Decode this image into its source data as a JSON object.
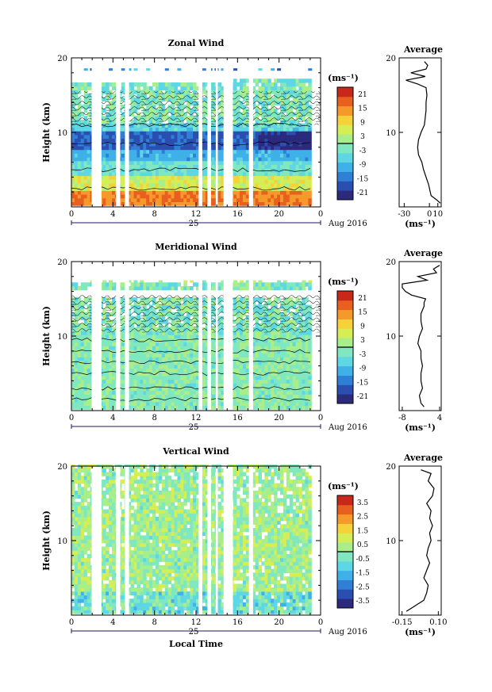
{
  "chart_data": [
    {
      "type": "heatmap",
      "title": "Zonal Wind",
      "ylabel": "Height (km)",
      "xlabel": "",
      "x_ticks": [
        "0",
        "4",
        "8",
        "12",
        "16",
        "20",
        "0"
      ],
      "y_ticks": [
        "10",
        "20"
      ],
      "xlim": [
        0,
        24
      ],
      "ylim": [
        0,
        20
      ],
      "date_day_label": "25",
      "date_label": "Aug 2016",
      "colorbar": {
        "unit_label": "(ms⁻¹)",
        "ticks": [
          "21",
          "15",
          "9",
          "3",
          "-3",
          "-9",
          "-15",
          "-21"
        ],
        "range": [
          -24,
          24
        ],
        "colors": [
          "#2b2a7d",
          "#2a4fb0",
          "#2f7fd6",
          "#3fb0e8",
          "#5ed6e3",
          "#7fe8c0",
          "#a8ee8a",
          "#d6ee55",
          "#f5d23a",
          "#f59a2a",
          "#e8601f",
          "#c8281a"
        ]
      },
      "data_gaps_hours": [
        [
          1.95,
          2.9
        ],
        [
          4.3,
          4.7
        ],
        [
          5.15,
          5.55
        ],
        [
          12.25,
          12.6
        ],
        [
          13.1,
          13.45
        ],
        [
          13.9,
          14.1
        ],
        [
          14.65,
          15.55
        ],
        [
          17.1,
          17.5
        ]
      ],
      "profile": {
        "title": "Average",
        "xlabel": "(ms⁻¹)",
        "x_ticks": [
          "-30",
          "0",
          "10"
        ],
        "xlim": [
          -36,
          14
        ],
        "y_ticks": [
          "10",
          "20"
        ],
        "height_km": [
          0.5,
          1,
          1.5,
          2,
          3,
          4,
          5,
          6,
          7,
          8,
          9,
          10,
          11,
          12,
          13,
          14,
          15,
          16,
          16.5,
          17,
          17.5,
          18,
          18.5,
          19,
          19.5
        ],
        "values": [
          13,
          8,
          2,
          1,
          -1,
          -4,
          -7,
          -9,
          -13,
          -14,
          -13,
          -10,
          -6,
          -5,
          -4,
          -4,
          -3,
          -4,
          -14,
          -28,
          -5,
          -22,
          -4,
          -2,
          -6
        ]
      }
    },
    {
      "type": "heatmap",
      "title": "Meridional Wind",
      "ylabel": "Height (km)",
      "xlabel": "",
      "x_ticks": [
        "0",
        "4",
        "8",
        "12",
        "16",
        "20",
        "0"
      ],
      "y_ticks": [
        "10",
        "20"
      ],
      "xlim": [
        0,
        24
      ],
      "ylim": [
        0,
        20
      ],
      "date_day_label": "25",
      "date_label": "Aug 2016",
      "colorbar": {
        "unit_label": "(ms⁻¹)",
        "ticks": [
          "21",
          "15",
          "9",
          "3",
          "-3",
          "-9",
          "-15",
          "-21"
        ],
        "range": [
          -24,
          24
        ],
        "colors": [
          "#2b2a7d",
          "#2a4fb0",
          "#2f7fd6",
          "#3fb0e8",
          "#5ed6e3",
          "#7fe8c0",
          "#a8ee8a",
          "#d6ee55",
          "#f5d23a",
          "#f59a2a",
          "#e8601f",
          "#c8281a"
        ]
      },
      "data_gaps_hours": [
        [
          1.95,
          2.9
        ],
        [
          4.3,
          4.7
        ],
        [
          5.15,
          5.55
        ],
        [
          12.25,
          12.6
        ],
        [
          13.1,
          13.45
        ],
        [
          13.9,
          14.1
        ],
        [
          14.65,
          15.55
        ],
        [
          17.1,
          17.5
        ]
      ],
      "profile": {
        "title": "Average",
        "xlabel": "(ms⁻¹)",
        "x_ticks": [
          "-8",
          "4"
        ],
        "xlim": [
          -9,
          4.5
        ],
        "y_ticks": [
          "10",
          "20"
        ],
        "height_km": [
          0.5,
          1,
          2,
          3,
          4,
          5,
          6,
          7,
          8,
          9,
          10,
          11,
          12,
          13,
          14,
          14.5,
          15,
          15.5,
          16,
          16.5,
          17,
          17.5,
          18,
          18.5,
          19,
          19.5
        ],
        "values": [
          -1,
          -2,
          -2.5,
          -1.5,
          -2,
          -2,
          -1.5,
          -2,
          -2,
          -3,
          -2.5,
          -1.5,
          -2,
          -2,
          -1,
          -1,
          -0.5,
          -5,
          -7,
          -8,
          -8,
          0,
          -3,
          3,
          2,
          4
        ]
      }
    },
    {
      "type": "heatmap",
      "title": "Vertical Wind",
      "ylabel": "Height (km)",
      "xlabel": "Local Time",
      "x_ticks": [
        "0",
        "4",
        "8",
        "12",
        "16",
        "20",
        "0"
      ],
      "y_ticks": [
        "10",
        "20"
      ],
      "xlim": [
        0,
        24
      ],
      "ylim": [
        0,
        20
      ],
      "date_day_label": "25",
      "date_label": "Aug 2016",
      "colorbar": {
        "unit_label": "(ms⁻¹)",
        "ticks": [
          "3.5",
          "2.5",
          "1.5",
          "0.5",
          "-0.5",
          "-1.5",
          "-2.5",
          "-3.5"
        ],
        "range": [
          -4,
          4
        ],
        "colors": [
          "#2b2a7d",
          "#2a4fb0",
          "#2f7fd6",
          "#3fb0e8",
          "#5ed6e3",
          "#7fe8c0",
          "#a8ee8a",
          "#d6ee55",
          "#f5d23a",
          "#f59a2a",
          "#e8601f",
          "#c8281a"
        ]
      },
      "data_gaps_hours": [
        [
          1.95,
          2.9
        ],
        [
          4.3,
          4.7
        ],
        [
          5.15,
          5.55
        ],
        [
          12.25,
          12.6
        ],
        [
          13.1,
          13.45
        ],
        [
          13.9,
          14.1
        ],
        [
          14.65,
          15.55
        ],
        [
          17.1,
          17.5
        ]
      ],
      "profile": {
        "title": "Average",
        "xlabel": "(ms⁻¹)",
        "x_ticks": [
          "-0.15",
          "0.10"
        ],
        "xlim": [
          -0.17,
          0.12
        ],
        "y_ticks": [
          "10",
          "20"
        ],
        "height_km": [
          0.5,
          1,
          2,
          3,
          4,
          5,
          6,
          7,
          8,
          9,
          10,
          11,
          12,
          13,
          14,
          15,
          16,
          17,
          18,
          19,
          19.5
        ],
        "values": [
          -0.12,
          -0.08,
          0.0,
          0.02,
          0.03,
          0.0,
          0.02,
          0.04,
          0.02,
          0.03,
          0.05,
          0.04,
          0.06,
          0.04,
          0.05,
          0.02,
          0.06,
          0.07,
          0.03,
          0.05,
          -0.02
        ]
      }
    }
  ]
}
